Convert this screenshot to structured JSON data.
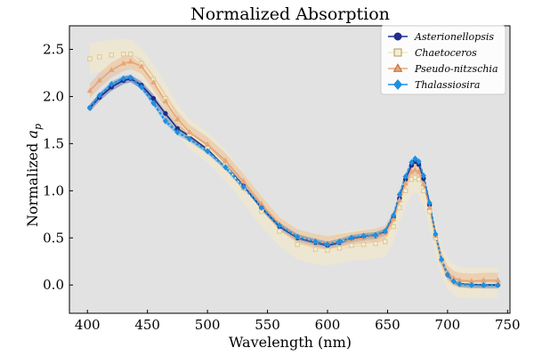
{
  "chart_data": {
    "type": "line",
    "title": "Normalized Absorption",
    "xlabel": "Wavelength (nm)",
    "ylabel_main": "Normalized ",
    "ylabel_sym": "a",
    "ylabel_sub": "p",
    "xlim": [
      385,
      752
    ],
    "ylim": [
      -0.3,
      2.75
    ],
    "xticks": [
      400,
      450,
      500,
      550,
      600,
      650,
      700,
      750
    ],
    "yticks": [
      0.0,
      0.5,
      1.0,
      1.5,
      2.0,
      2.5
    ],
    "xtick_labels": [
      "400",
      "450",
      "500",
      "550",
      "600",
      "650",
      "700",
      "750"
    ],
    "ytick_labels": [
      "0.0",
      "0.5",
      "1.0",
      "1.5",
      "2.0",
      "2.5"
    ],
    "background": "#e2e2e2",
    "x": [
      402,
      410,
      420,
      430,
      436,
      445,
      455,
      465,
      475,
      485,
      500,
      515,
      530,
      545,
      560,
      575,
      590,
      600,
      610,
      620,
      630,
      640,
      648,
      655,
      660,
      665,
      670,
      673,
      676,
      680,
      685,
      690,
      695,
      700,
      705,
      710,
      720,
      730,
      742
    ],
    "series": [
      {
        "name": "Asterionellopsis",
        "color": "#1f2d8a",
        "marker": "circle",
        "values": [
          1.88,
          1.99,
          2.1,
          2.17,
          2.19,
          2.12,
          1.98,
          1.82,
          1.66,
          1.58,
          1.44,
          1.27,
          1.05,
          0.82,
          0.62,
          0.5,
          0.45,
          0.42,
          0.45,
          0.49,
          0.51,
          0.52,
          0.56,
          0.72,
          0.92,
          1.12,
          1.27,
          1.31,
          1.28,
          1.13,
          0.85,
          0.52,
          0.26,
          0.11,
          0.05,
          0.02,
          0.01,
          0.0,
          0.0
        ],
        "band": 0.04
      },
      {
        "name": "Chaetoceros",
        "color": "#f5e9c4",
        "marker": "square",
        "values": [
          2.4,
          2.42,
          2.44,
          2.45,
          2.45,
          2.35,
          2.18,
          1.98,
          1.76,
          1.6,
          1.46,
          1.27,
          1.03,
          0.78,
          0.57,
          0.43,
          0.38,
          0.37,
          0.39,
          0.42,
          0.43,
          0.44,
          0.46,
          0.62,
          0.82,
          1.0,
          1.12,
          1.14,
          1.12,
          1.0,
          0.78,
          0.5,
          0.26,
          0.12,
          0.06,
          0.03,
          0.02,
          0.02,
          0.02
        ],
        "band": 0.16
      },
      {
        "name": "Pseudo-nitzschia",
        "color": "#e8a576",
        "marker": "triangle",
        "values": [
          2.06,
          2.17,
          2.28,
          2.35,
          2.37,
          2.32,
          2.15,
          1.95,
          1.76,
          1.62,
          1.49,
          1.32,
          1.1,
          0.86,
          0.64,
          0.51,
          0.46,
          0.44,
          0.46,
          0.48,
          0.5,
          0.52,
          0.55,
          0.7,
          0.9,
          1.08,
          1.2,
          1.22,
          1.2,
          1.07,
          0.82,
          0.52,
          0.27,
          0.13,
          0.07,
          0.05,
          0.04,
          0.05,
          0.05
        ],
        "band": 0.08
      },
      {
        "name": "Thalassiosira",
        "color": "#1e8fe0",
        "marker": "diamond",
        "values": [
          1.88,
          2.01,
          2.13,
          2.19,
          2.2,
          2.1,
          1.93,
          1.74,
          1.62,
          1.55,
          1.42,
          1.25,
          1.04,
          0.82,
          0.63,
          0.51,
          0.46,
          0.43,
          0.46,
          0.5,
          0.52,
          0.53,
          0.57,
          0.74,
          0.96,
          1.15,
          1.3,
          1.34,
          1.31,
          1.16,
          0.87,
          0.54,
          0.27,
          0.11,
          0.04,
          0.01,
          0.0,
          0.0,
          0.0
        ],
        "band": 0.03
      }
    ],
    "legend_placement": "top-right"
  }
}
